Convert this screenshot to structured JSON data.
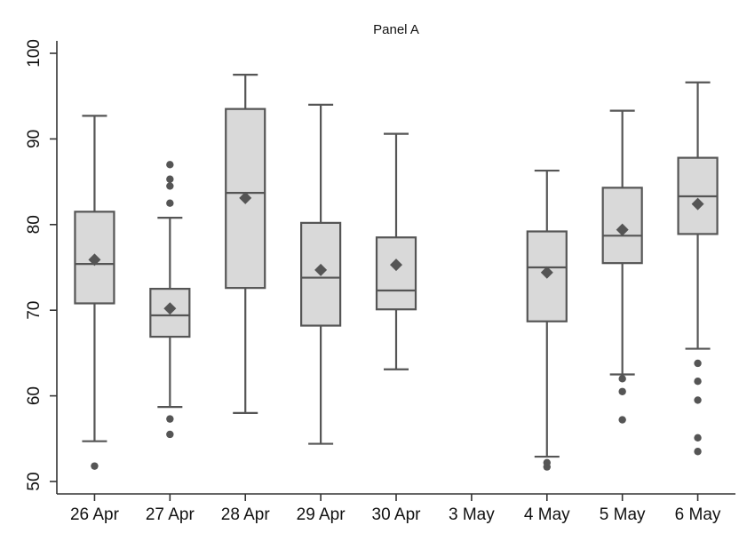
{
  "chart_data": {
    "type": "boxplot",
    "title": "Panel A",
    "xlabel": "",
    "ylabel": "",
    "ylim": [
      50,
      100
    ],
    "yticks": [
      50,
      60,
      70,
      80,
      90,
      100
    ],
    "ytick_labels": [
      "50",
      "60",
      "70",
      "80",
      "90",
      "100"
    ],
    "grid": false,
    "categories": [
      "26 Apr",
      "27 Apr",
      "28 Apr",
      "29 Apr",
      "30 Apr",
      "3 May",
      "4 May",
      "5 May",
      "6 May"
    ],
    "boxes": [
      {
        "category": "26 Apr",
        "whisker_low": 54.7,
        "q1": 70.8,
        "median": 75.4,
        "q3": 81.5,
        "whisker_high": 92.7,
        "mean": 75.9,
        "outliers": [
          51.8
        ]
      },
      {
        "category": "27 Apr",
        "whisker_low": 58.7,
        "q1": 66.9,
        "median": 69.4,
        "q3": 72.5,
        "whisker_high": 80.8,
        "mean": 70.2,
        "outliers": [
          55.5,
          57.3,
          82.5,
          84.5,
          85.3,
          87.0
        ]
      },
      {
        "category": "28 Apr",
        "whisker_low": 58.0,
        "q1": 72.6,
        "median": 83.7,
        "q3": 93.5,
        "whisker_high": 97.5,
        "mean": 83.1,
        "outliers": []
      },
      {
        "category": "29 Apr",
        "whisker_low": 54.4,
        "q1": 68.2,
        "median": 73.8,
        "q3": 80.2,
        "whisker_high": 94.0,
        "mean": 74.7,
        "outliers": []
      },
      {
        "category": "30 Apr",
        "whisker_low": 63.1,
        "q1": 70.1,
        "median": 72.3,
        "q3": 78.5,
        "whisker_high": 90.6,
        "mean": 75.3,
        "outliers": []
      },
      {
        "category": "3 May",
        "whisker_low": null,
        "q1": null,
        "median": null,
        "q3": null,
        "whisker_high": null,
        "mean": null,
        "outliers": []
      },
      {
        "category": "4 May",
        "whisker_low": 52.9,
        "q1": 68.7,
        "median": 75.0,
        "q3": 79.2,
        "whisker_high": 86.3,
        "mean": 74.4,
        "outliers": [
          51.7,
          52.2
        ]
      },
      {
        "category": "5 May",
        "whisker_low": 62.5,
        "q1": 75.5,
        "median": 78.7,
        "q3": 84.3,
        "whisker_high": 93.3,
        "mean": 79.4,
        "outliers": [
          57.2,
          60.5,
          62.0
        ]
      },
      {
        "category": "6 May",
        "whisker_low": 65.5,
        "q1": 78.9,
        "median": 83.3,
        "q3": 87.8,
        "whisker_high": 96.6,
        "mean": 82.4,
        "outliers": [
          53.5,
          55.1,
          59.5,
          61.7,
          63.8
        ]
      }
    ]
  }
}
